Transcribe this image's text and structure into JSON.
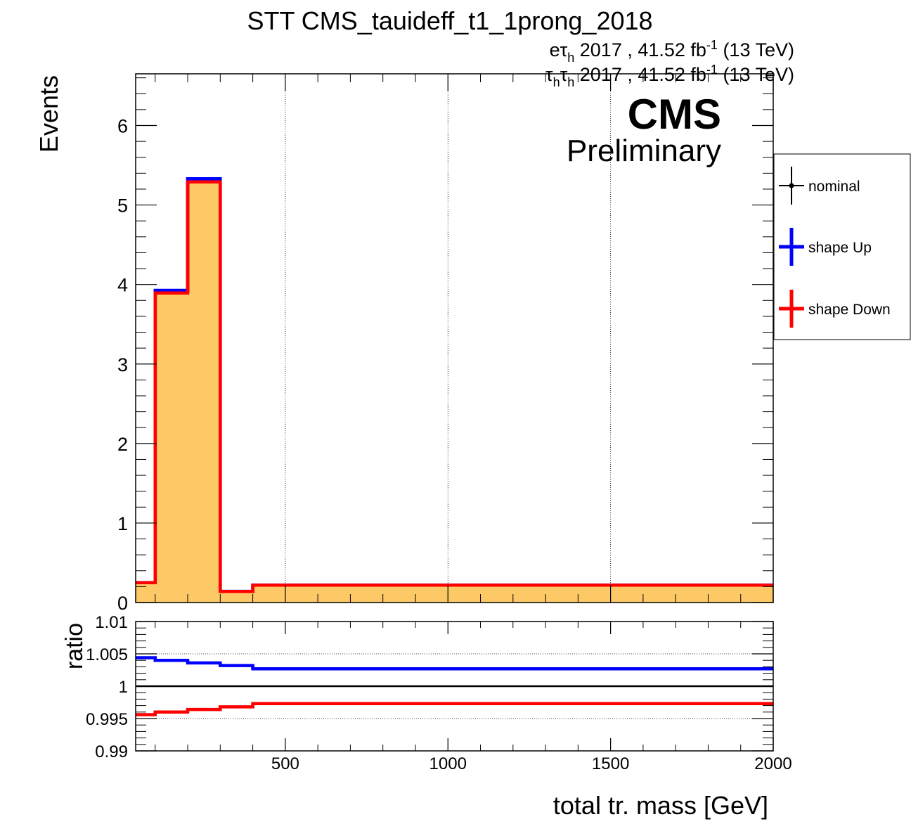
{
  "chart_data": [
    {
      "type": "line",
      "panel": "main",
      "title": "STT CMS_tauideff_t1_1prong_2018",
      "header_lines": [
        {
          "pre": "eτ",
          "sub": "h",
          "post": " 2017 , 41.52 fb",
          "sup": "-1",
          "end": " (13 TeV)"
        },
        {
          "pre": "τ",
          "sub": "h",
          "mid": "τ",
          "sub2": "h",
          "post": " 2017 , 41.52 fb",
          "sup": "-1",
          "end": " (13 TeV)"
        }
      ],
      "cms_label": "CMS",
      "cms_sublabel": "Preliminary",
      "ylabel": "Events",
      "xlim": [
        40,
        2000
      ],
      "ylim": [
        0,
        6.65
      ],
      "yticks": [
        "0",
        "1",
        "2",
        "3",
        "4",
        "5",
        "6"
      ],
      "ytick_values": [
        0,
        1,
        2,
        3,
        4,
        5,
        6
      ],
      "xgrid_values": [
        500,
        1000,
        1500
      ],
      "bin_edges": [
        40,
        100,
        200,
        300,
        400,
        2000
      ],
      "series": [
        {
          "name": "nominal",
          "color": "#000000",
          "fill": "#fdc967",
          "values": [
            0.25,
            3.91,
            5.31,
            0.14,
            0.22
          ]
        },
        {
          "name": "shape Up",
          "color": "#0000ff",
          "values": [
            0.251,
            3.926,
            5.33,
            0.1405,
            0.2206
          ]
        },
        {
          "name": "shape Down",
          "color": "#ff0000",
          "values": [
            0.249,
            3.894,
            5.29,
            0.1395,
            0.2194
          ]
        }
      ],
      "legend": {
        "position": "right",
        "entries": [
          "nominal",
          "shape Up",
          "shape Down"
        ]
      }
    },
    {
      "type": "line",
      "panel": "ratio",
      "ylabel": "ratio",
      "xlabel": "total tr. mass [GeV]",
      "xlim": [
        40,
        2000
      ],
      "ylim": [
        0.99,
        1.01
      ],
      "yticks": [
        "0.99",
        "0.995",
        "1",
        "1.005",
        "1.01"
      ],
      "ytick_values": [
        0.99,
        0.995,
        1.0,
        1.005,
        1.01
      ],
      "xticks": [
        "500",
        "1000",
        "1500",
        "2000"
      ],
      "xtick_values": [
        500,
        1000,
        1500,
        2000
      ],
      "bin_edges": [
        40,
        100,
        200,
        300,
        400,
        2000
      ],
      "reference": 1.0,
      "series": [
        {
          "name": "shape Up",
          "color": "#0000ff",
          "values": [
            1.0044,
            1.004,
            1.0036,
            1.0032,
            1.0027
          ]
        },
        {
          "name": "shape Down",
          "color": "#ff0000",
          "values": [
            0.9956,
            0.996,
            0.9964,
            0.9968,
            0.9973
          ]
        }
      ]
    }
  ]
}
